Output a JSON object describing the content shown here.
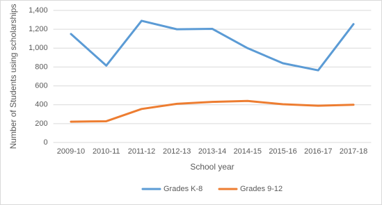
{
  "chart_data": {
    "type": "line",
    "y_label": "Number of Students using scholarships",
    "x_label": "School year",
    "categories": [
      "2009-10",
      "2010-11",
      "2011-12",
      "2012-13",
      "2013-14",
      "2014-15",
      "2015-16",
      "2016-17",
      "2017-18"
    ],
    "series": [
      {
        "name": "Grades K-8",
        "color": "#5b9bd5",
        "values": [
          1150,
          815,
          1290,
          1200,
          1205,
          1000,
          840,
          765,
          1255
        ]
      },
      {
        "name": "Grades 9-12",
        "color": "#ed7d31",
        "values": [
          220,
          225,
          355,
          410,
          430,
          440,
          405,
          390,
          400
        ]
      }
    ],
    "ylim": [
      0,
      1400
    ],
    "yticks": [
      0,
      200,
      400,
      600,
      800,
      {
        "value": 1000,
        "label": "1,000"
      },
      {
        "value": 1200,
        "label": "1,200"
      },
      {
        "value": 1400,
        "label": "1,400"
      }
    ],
    "grid": true,
    "legend": "bottom"
  }
}
